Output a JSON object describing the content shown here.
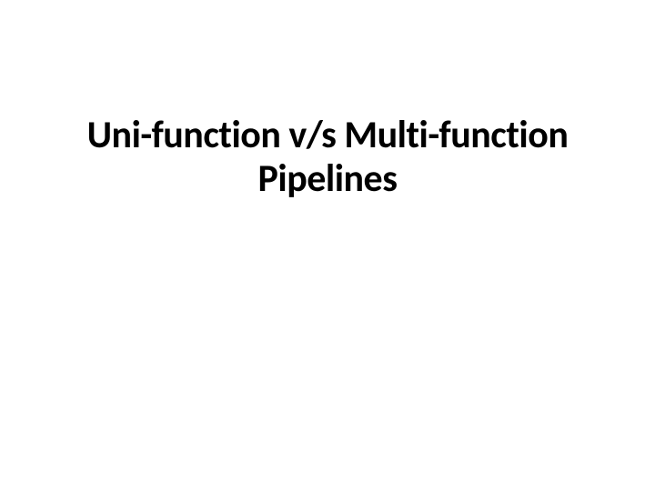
{
  "slide": {
    "title_line1": "Uni-function v/s Multi-function",
    "title_line2": "Pipelines",
    "title_fontsize": 42,
    "title_color": "#000000",
    "background_color": "#ffffff",
    "font_family": "Calibri, 'Segoe UI', Arial, sans-serif",
    "font_weight": 700
  }
}
